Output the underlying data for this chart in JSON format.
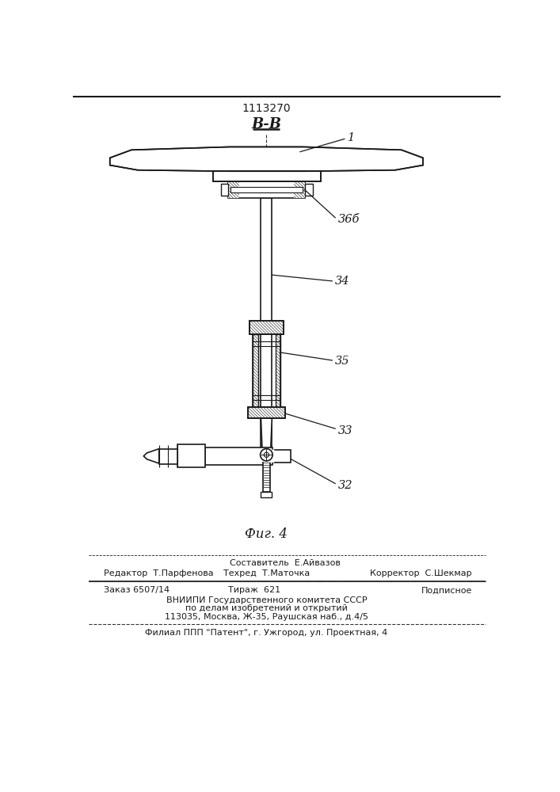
{
  "title": "1113270",
  "section_label": "В-В",
  "fig_label": "Фиг. 4",
  "label_1": "1",
  "label_32": "32",
  "label_33": "33",
  "label_34": "34",
  "label_35": "35",
  "label_36": "36",
  "bg_color": "#ffffff",
  "line_color": "#1a1a1a",
  "footer_line1": "Составитель  Е.Айвазов",
  "footer_line2_left": "Редактор  Т.Парфенова",
  "footer_line2_mid": "Техред  Т.Маточка",
  "footer_line2_right": "Корректор  С.Шекмар",
  "footer_line3_left": "Заказ 6507/14",
  "footer_line3_mid": "Тираж  621",
  "footer_line3_right": "Подписное",
  "footer_line4": "ВНИИПИ Государственного комитета СССР",
  "footer_line5": "по делам изобретений и открытий",
  "footer_line6": "113035, Москва, Ж-35, Раушская наб., д.4/5",
  "footer_line7": "Филиал ППП \"Патент\", г. Ужгород, ул. Проектная, 4"
}
